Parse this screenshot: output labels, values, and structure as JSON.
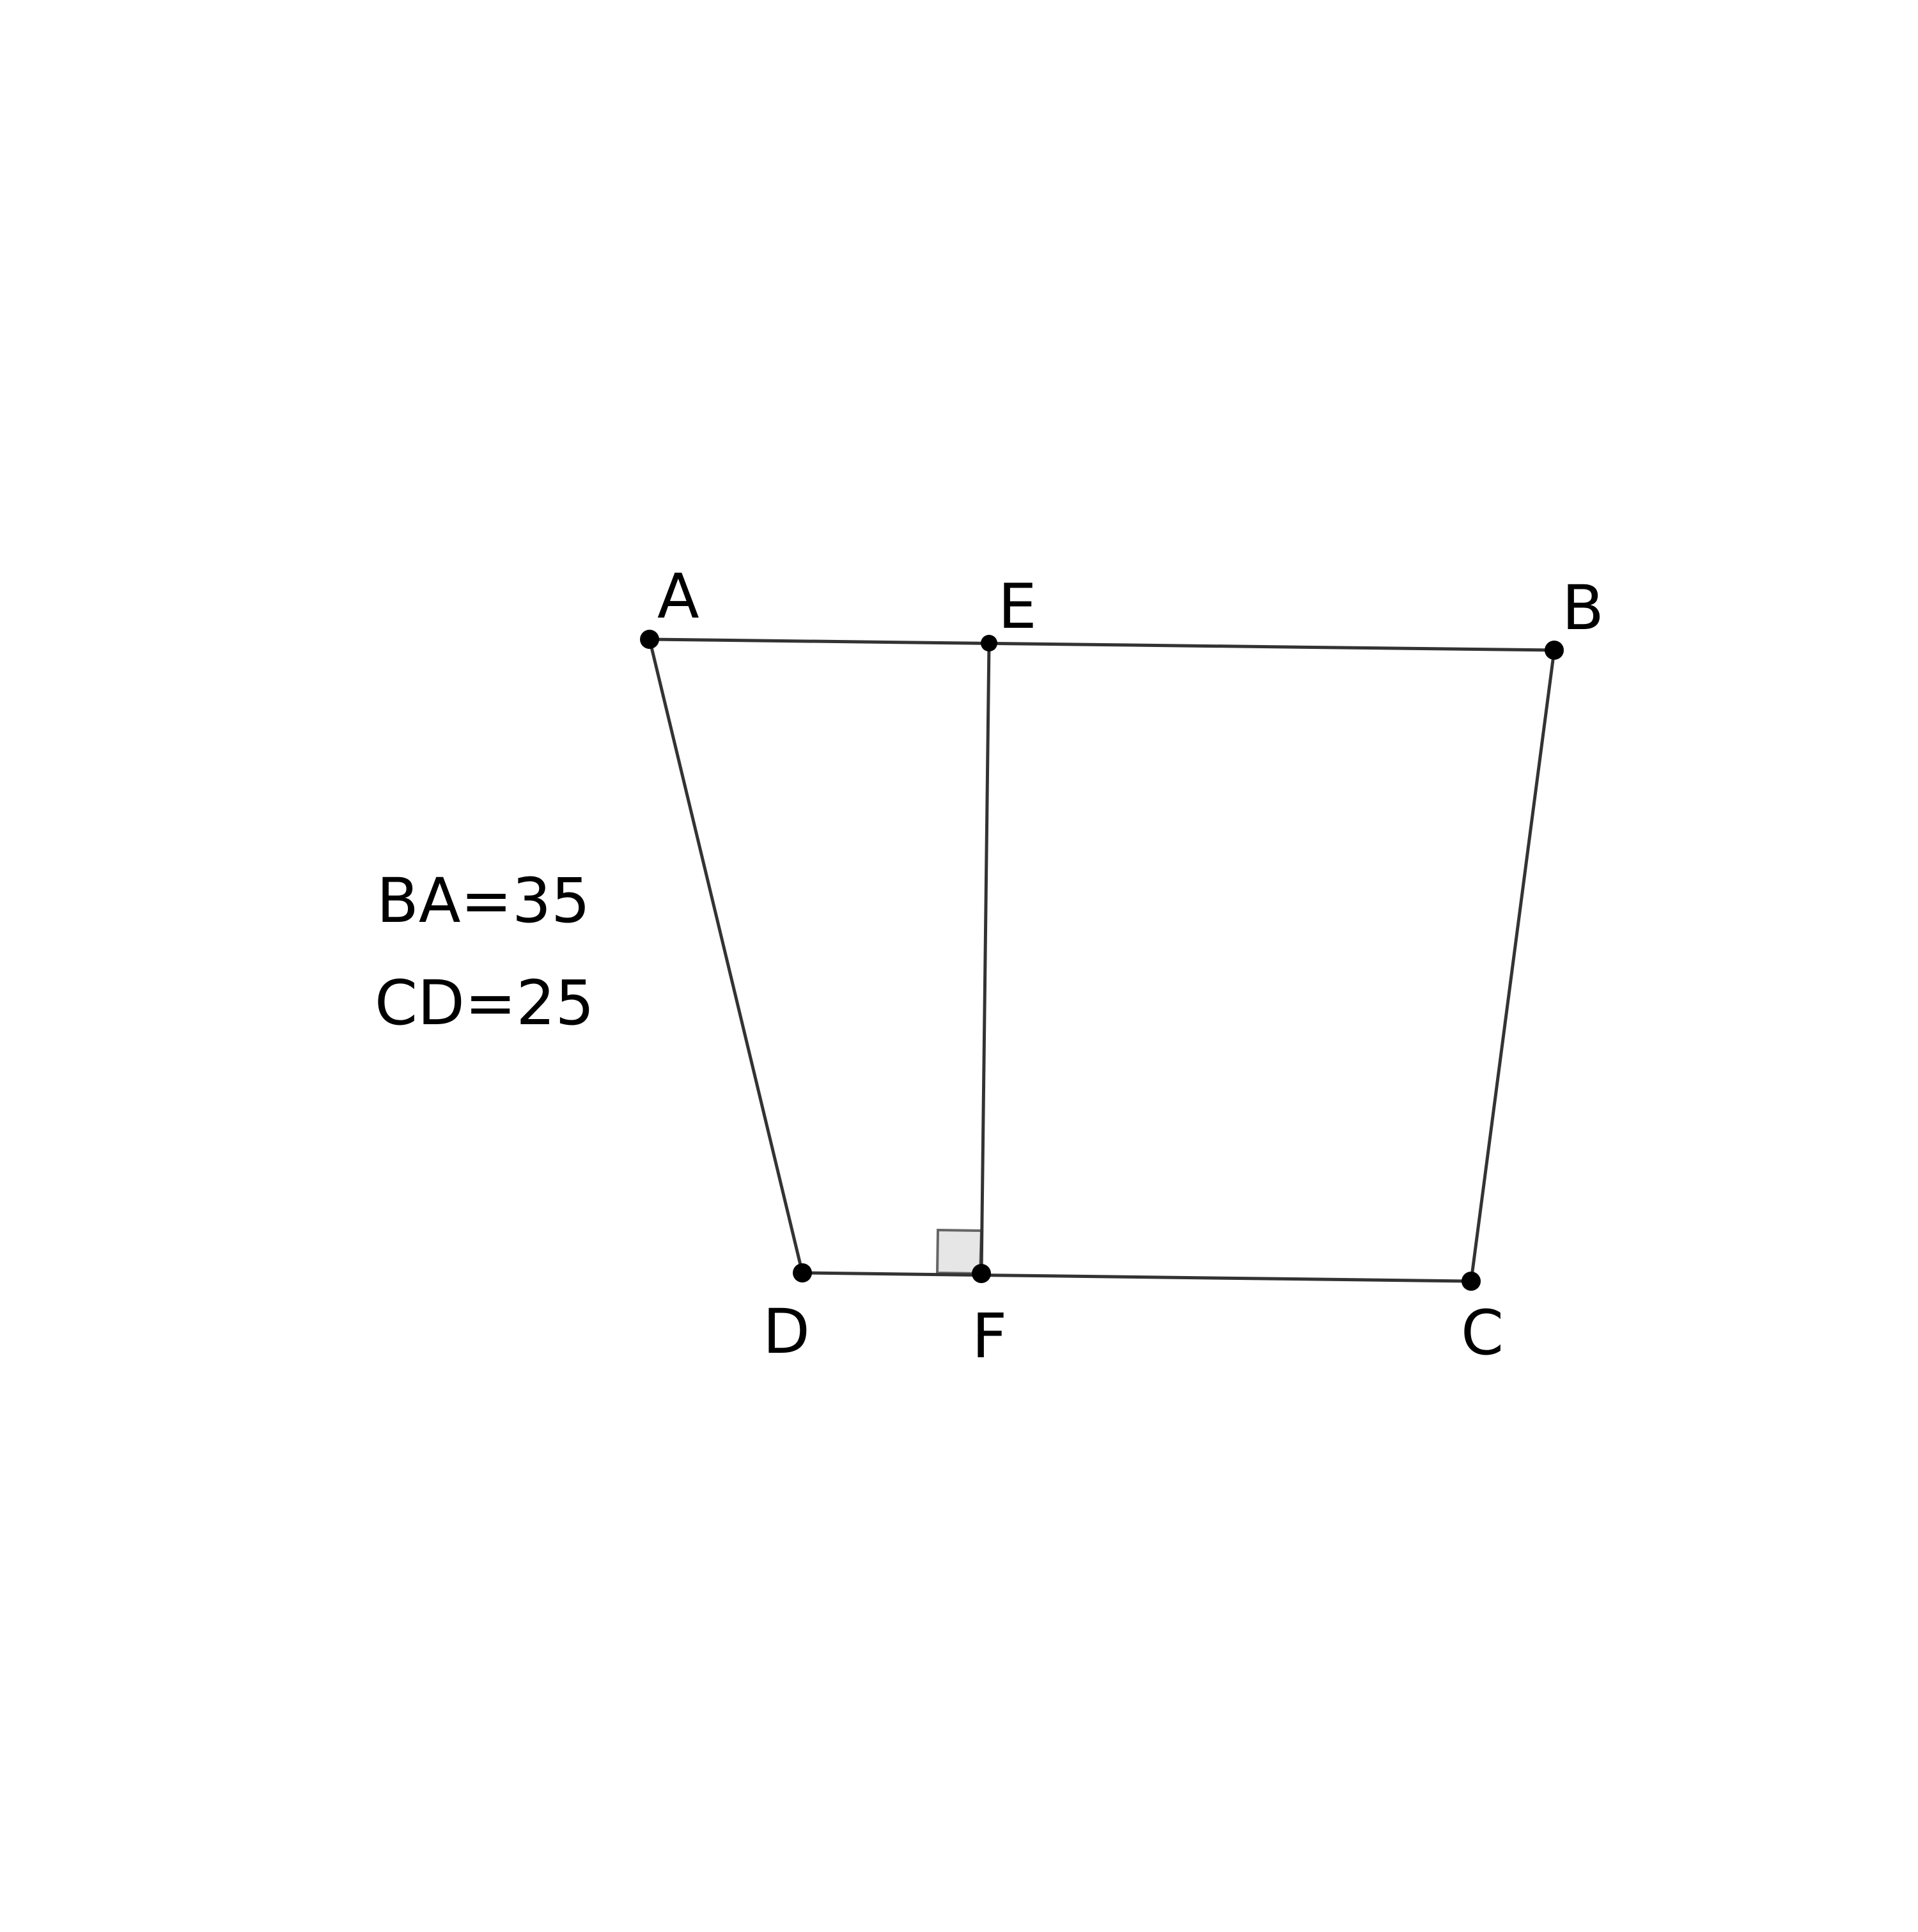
{
  "diagram": {
    "points": {
      "A": "A",
      "B": "B",
      "C": "C",
      "D": "D",
      "E": "E",
      "F": "F"
    },
    "measurements": [
      "BA=35",
      "CD=25"
    ],
    "segments": [
      "AB",
      "BC",
      "CD",
      "DA",
      "EF"
    ],
    "right_angle_at": "F",
    "colors": {
      "line": "#333333",
      "point": "#000000",
      "right_angle_fill": "#e6e6e6"
    }
  }
}
